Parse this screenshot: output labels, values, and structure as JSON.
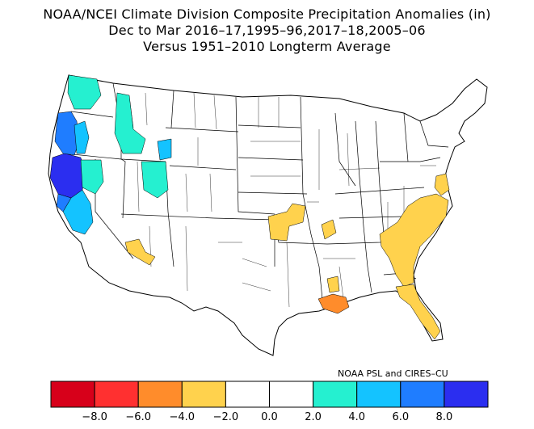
{
  "title": {
    "line1": "NOAA/NCEI Climate Division Composite Precipitation Anomalies (in)",
    "line2": "Dec to Mar  2016–17,1995–96,2017–18,2005–06",
    "line3": "Versus 1951–2010 Longterm Average"
  },
  "credit": "NOAA PSL and CIRES–CU",
  "colorbar": {
    "bins": [
      {
        "from": -10,
        "to": -8,
        "color": "#d7001a"
      },
      {
        "from": -8,
        "to": -6,
        "color": "#ff3030"
      },
      {
        "from": -6,
        "to": -4,
        "color": "#ff8c2b"
      },
      {
        "from": -4,
        "to": -2,
        "color": "#ffd24d"
      },
      {
        "from": -2,
        "to": 0,
        "color": "#ffffff"
      },
      {
        "from": 0,
        "to": 2,
        "color": "#ffffff"
      },
      {
        "from": 2,
        "to": 4,
        "color": "#25f0d0"
      },
      {
        "from": 4,
        "to": 6,
        "color": "#14c3ff"
      },
      {
        "from": 6,
        "to": 8,
        "color": "#1f7dff"
      },
      {
        "from": 8,
        "to": 10,
        "color": "#2b2ef0"
      }
    ],
    "tick_labels": [
      "−8.0",
      "−6.0",
      "−4.0",
      "−2.0",
      "0.0",
      "2.0",
      "4.0",
      "6.0",
      "8.0"
    ]
  },
  "regions": [
    {
      "name": "northern-california-coast",
      "category": "8.0+",
      "color": "#2b2ef0"
    },
    {
      "name": "oregon-coast",
      "category": "6.0 to 8.0",
      "color": "#1f7dff"
    },
    {
      "name": "california-sierra-central",
      "category": "4.0 to 6.0",
      "color": "#14c3ff"
    },
    {
      "name": "washington-cascades",
      "category": "2.0 to 4.0",
      "color": "#25f0d0"
    },
    {
      "name": "idaho-central",
      "category": "2.0 to 4.0",
      "color": "#25f0d0"
    },
    {
      "name": "nevada-northwest",
      "category": "2.0 to 4.0",
      "color": "#25f0d0"
    },
    {
      "name": "utah-north",
      "category": "2.0 to 4.0",
      "color": "#25f0d0"
    },
    {
      "name": "arizona-south",
      "category": "−4.0 to −2.0",
      "color": "#ffd24d"
    },
    {
      "name": "kansas-southeast",
      "category": "−4.0 to −2.0",
      "color": "#ffd24d"
    },
    {
      "name": "missouri-east",
      "category": "−4.0 to −2.0",
      "color": "#ffd24d"
    },
    {
      "name": "southeast-atlantic",
      "category": "−4.0 to −2.0",
      "color": "#ffd24d"
    },
    {
      "name": "florida",
      "category": "−4.0 to −2.0",
      "color": "#ffd24d"
    },
    {
      "name": "mississippi-south",
      "category": "−4.0 to −2.0",
      "color": "#ffd24d"
    },
    {
      "name": "delmarva",
      "category": "−4.0 to −2.0",
      "color": "#ffd24d"
    },
    {
      "name": "louisiana-south",
      "category": "−6.0 to −4.0",
      "color": "#ff8c2b"
    }
  ]
}
